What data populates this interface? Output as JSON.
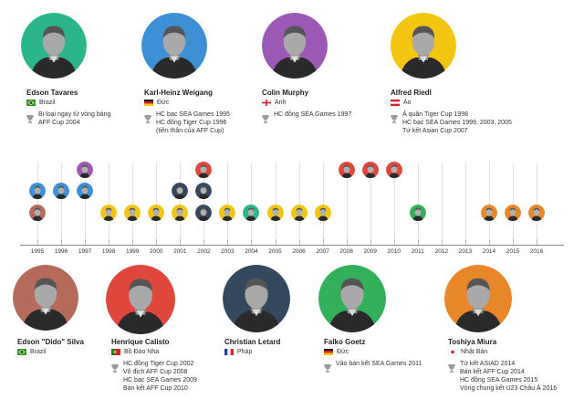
{
  "colors": {
    "tavares": "#2bb58a",
    "weigang": "#3d8fd6",
    "murphy": "#9b59b6",
    "riedl": "#f2c511",
    "silva": "#b56a5a",
    "calisto": "#e0473c",
    "letard": "#34495e",
    "goetz": "#33b05a",
    "miura": "#e8862a"
  },
  "top_coaches": [
    {
      "key": "tavares",
      "name": "Edson Tavares",
      "country": "Brazil",
      "flag": "brazil",
      "achievements": [
        "Bị loại ngay từ vòng bảng",
        "AFF Cup 2004"
      ]
    },
    {
      "key": "weigang",
      "name": "Karl-Heinz Weigang",
      "country": "Đức",
      "flag": "germany",
      "achievements": [
        "HC bạc SEA Games 1995",
        "HC đồng Tiger Cup 1996",
        "(tiền thân của AFF Cup)"
      ]
    },
    {
      "key": "murphy",
      "name": "Colin Murphy",
      "country": "Anh",
      "flag": "england",
      "achievements": [
        "HC đồng SEA Games 1997"
      ]
    },
    {
      "key": "riedl",
      "name": "Alfred Riedl",
      "country": "Áo",
      "flag": "austria",
      "achievements": [
        "Á quân Tiger Cup 1998",
        "HC bạc SEA Games 1999, 2003, 2005",
        "Tứ kết Asian Cup 2007"
      ]
    }
  ],
  "bottom_coaches": [
    {
      "key": "silva",
      "name": "Edson \"Dido\" Silva",
      "country": "Brazil",
      "flag": "brazil",
      "achievements": []
    },
    {
      "key": "calisto",
      "name": "Henrique Calisto",
      "country": "Bồ Đào Nha",
      "flag": "portugal",
      "achievements": [
        "HC đồng Tiger Cup 2002",
        "Vô địch AFF Cup 2008",
        "HC bạc SEA Games 2009",
        "Bán kết AFF Cup 2010"
      ]
    },
    {
      "key": "letard",
      "name": "Christian Letard",
      "country": "Pháp",
      "flag": "france",
      "achievements": []
    },
    {
      "key": "goetz",
      "name": "Falko Goetz",
      "country": "Đức",
      "flag": "germany",
      "achievements": [
        "Vào bán kết SEA Games 2011"
      ]
    },
    {
      "key": "miura",
      "name": "Toshiya Miura",
      "country": "Nhật Bản",
      "flag": "japan",
      "achievements": [
        "Tứ kết ASIAD 2014",
        "Bán kết AFF Cup 2014",
        "HC đồng SEA Games 2015",
        "Vòng chung kết U23 Châu Á 2016"
      ]
    }
  ],
  "timeline": {
    "years": [
      "1995",
      "1996",
      "1997",
      "1998",
      "1999",
      "2000",
      "2001",
      "2002",
      "2003",
      "2004",
      "2005",
      "2006",
      "2007",
      "2008",
      "2009",
      "2010",
      "2011",
      "2012",
      "2013",
      "2014",
      "2015",
      "2016"
    ],
    "tenures": [
      {
        "year": "1995",
        "row": 0,
        "coach": "silva"
      },
      {
        "year": "1995",
        "row": 1,
        "coach": "weigang"
      },
      {
        "year": "1996",
        "row": 1,
        "coach": "weigang"
      },
      {
        "year": "1997",
        "row": 1,
        "coach": "weigang"
      },
      {
        "year": "1997",
        "row": 2,
        "coach": "murphy"
      },
      {
        "year": "1998",
        "row": 0,
        "coach": "riedl"
      },
      {
        "year": "1999",
        "row": 0,
        "coach": "riedl"
      },
      {
        "year": "2000",
        "row": 0,
        "coach": "riedl"
      },
      {
        "year": "2001",
        "row": 0,
        "coach": "riedl"
      },
      {
        "year": "2001",
        "row": 1,
        "coach": "letard"
      },
      {
        "year": "2002",
        "row": 0,
        "coach": "letard"
      },
      {
        "year": "2002",
        "row": 1,
        "coach": "letard"
      },
      {
        "year": "2002",
        "row": 2,
        "coach": "calisto"
      },
      {
        "year": "2003",
        "row": 0,
        "coach": "riedl"
      },
      {
        "year": "2004",
        "row": 0,
        "coach": "tavares"
      },
      {
        "year": "2005",
        "row": 0,
        "coach": "riedl"
      },
      {
        "year": "2006",
        "row": 0,
        "coach": "riedl"
      },
      {
        "year": "2007",
        "row": 0,
        "coach": "riedl"
      },
      {
        "year": "2008",
        "row": 2,
        "coach": "calisto"
      },
      {
        "year": "2009",
        "row": 2,
        "coach": "calisto"
      },
      {
        "year": "2010",
        "row": 2,
        "coach": "calisto"
      },
      {
        "year": "2011",
        "row": 0,
        "coach": "goetz"
      },
      {
        "year": "2014",
        "row": 0,
        "coach": "miura"
      },
      {
        "year": "2015",
        "row": 0,
        "coach": "miura"
      },
      {
        "year": "2016",
        "row": 0,
        "coach": "miura"
      }
    ]
  }
}
